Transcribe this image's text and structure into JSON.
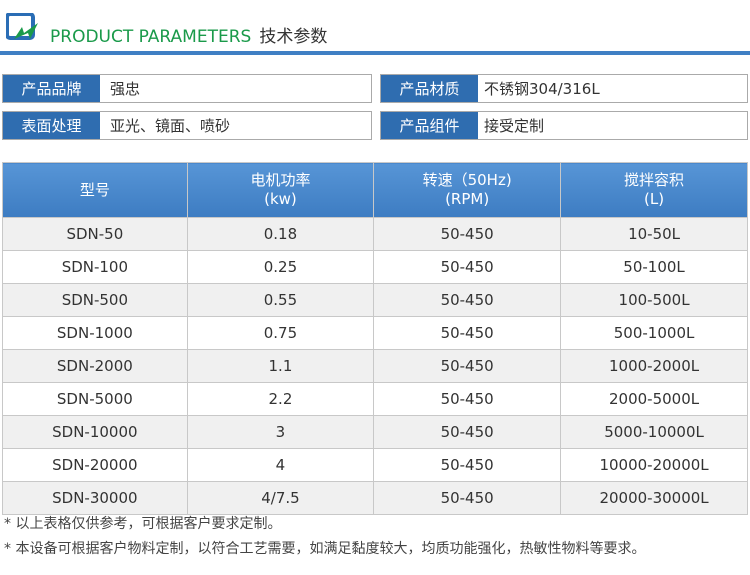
{
  "header": {
    "title_en": "PRODUCT PARAMETERS",
    "title_cn": "技术参数",
    "accent": "#3f7fc4",
    "title_color": "#1a9a4a"
  },
  "info": [
    {
      "label": "产品品牌",
      "value": "强忠"
    },
    {
      "label": "产品材质",
      "value": "不锈钢304/316L"
    },
    {
      "label": "表面处理",
      "value": "亚光、镜面、喷砂"
    },
    {
      "label": "产品组件",
      "value": "接受定制"
    }
  ],
  "table": {
    "headers": [
      [
        "型号",
        ""
      ],
      [
        "电机功率",
        "(kw)"
      ],
      [
        "转速（50Hz)",
        "(RPM)"
      ],
      [
        "搅拌容积",
        "(L)"
      ]
    ],
    "rows": [
      [
        "SDN-50",
        "0.18",
        "50-450",
        "10-50L"
      ],
      [
        "SDN-100",
        "0.25",
        "50-450",
        "50-100L"
      ],
      [
        "SDN-500",
        "0.55",
        "50-450",
        "100-500L"
      ],
      [
        "SDN-1000",
        "0.75",
        "50-450",
        "500-1000L"
      ],
      [
        "SDN-2000",
        "1.1",
        "50-450",
        "1000-2000L"
      ],
      [
        "SDN-5000",
        "2.2",
        "50-450",
        "2000-5000L"
      ],
      [
        "SDN-10000",
        "3",
        "50-450",
        "5000-10000L"
      ],
      [
        "SDN-20000",
        "4",
        "50-450",
        "10000-20000L"
      ],
      [
        "SDN-30000",
        "4/7.5",
        "50-450",
        "20000-30000L"
      ]
    ]
  },
  "notes": [
    "* 以上表格仅供参考，可根据客户要求定制。",
    "* 本设备可根据客户物料定制，以符合工艺需要，如满足黏度较大，均质功能强化，热敏性物料等要求。"
  ]
}
